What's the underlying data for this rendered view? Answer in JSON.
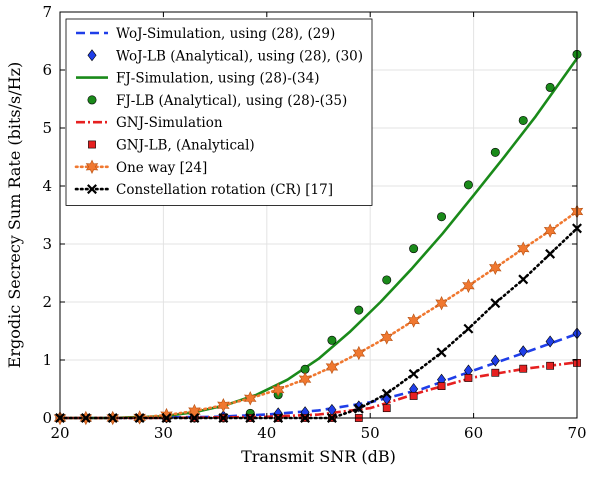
{
  "chart_data": {
    "type": "line",
    "xlabel": "Transmit SNR (dB)",
    "ylabel": "Ergodic Secrecy Sum Rate (bits/s/Hz)",
    "xlim": [
      20,
      70
    ],
    "ylim": [
      0,
      7
    ],
    "xticks": [
      "20",
      "30",
      "40",
      "50",
      "60",
      "70"
    ],
    "yticks": [
      "0",
      "1",
      "2",
      "3",
      "4",
      "5",
      "6",
      "7"
    ],
    "grid": true,
    "legend_position": "top-left",
    "series": [
      {
        "name": "WoJ-Simulation, using (28), (29)",
        "style": "dashed",
        "color": "#1f3ee8",
        "marker": "none",
        "x": [
          20,
          25,
          30,
          35,
          40,
          45,
          50,
          55,
          60,
          65,
          70
        ],
        "y": [
          0,
          0,
          0.01,
          0.02,
          0.06,
          0.13,
          0.27,
          0.5,
          0.82,
          1.13,
          1.45
        ]
      },
      {
        "name": "WoJ-LB (Analytical), using (28), (30)",
        "style": "none",
        "color": "#1f3ee8",
        "marker": "diamond",
        "x": [
          20,
          22.5,
          25.1,
          27.7,
          30.3,
          33,
          35.8,
          38.4,
          41.1,
          43.7,
          46.3,
          48.9,
          51.6,
          54.2,
          56.9,
          59.5,
          62.1,
          64.8,
          67.4,
          70
        ],
        "y": [
          0,
          0,
          0,
          0,
          0.01,
          0.02,
          0.03,
          0.05,
          0.08,
          0.1,
          0.14,
          0.2,
          0.33,
          0.5,
          0.66,
          0.82,
          0.99,
          1.15,
          1.32,
          1.46
        ]
      },
      {
        "name": "FJ-Simulation, using (28)-(34)",
        "style": "solid",
        "color": "#1a8a1a",
        "marker": "none",
        "x": [
          20,
          25,
          30,
          33,
          36,
          39,
          42,
          45,
          48,
          51,
          54,
          57,
          60,
          63,
          66,
          70
        ],
        "y": [
          0,
          0,
          0.03,
          0.1,
          0.22,
          0.4,
          0.66,
          1.02,
          1.48,
          2.0,
          2.57,
          3.18,
          3.84,
          4.51,
          5.2,
          6.2
        ]
      },
      {
        "name": "FJ-LB (Analytical), using (28)-(35)",
        "style": "none",
        "color": "#1a8a1a",
        "marker": "circle",
        "x": [
          20,
          22.5,
          25.1,
          27.7,
          30.3,
          33,
          35.8,
          38.4,
          41.1,
          43.7,
          46.3,
          48.9,
          51.6,
          54.2,
          56.9,
          59.5,
          62.1,
          64.8,
          67.4,
          70
        ],
        "y": [
          0,
          0,
          0,
          0,
          0,
          0,
          0,
          0.08,
          0.4,
          0.84,
          1.34,
          1.86,
          2.38,
          2.92,
          3.47,
          4.02,
          4.58,
          5.13,
          5.7,
          6.27
        ]
      },
      {
        "name": "GNJ-Simulation",
        "style": "dashdot",
        "color": "#e62020",
        "marker": "none",
        "x": [
          20,
          25,
          30,
          35,
          40,
          45,
          50,
          55,
          60,
          65,
          70
        ],
        "y": [
          0,
          0,
          0,
          0.01,
          0.02,
          0.06,
          0.17,
          0.45,
          0.7,
          0.85,
          0.96
        ]
      },
      {
        "name": "GNJ-LB, (Analytical)",
        "style": "none",
        "color": "#e62020",
        "marker": "square",
        "x": [
          20,
          22.5,
          25.1,
          27.7,
          30.3,
          33,
          35.8,
          38.4,
          41.1,
          43.7,
          46.3,
          48.9,
          51.6,
          54.2,
          56.9,
          59.5,
          62.1,
          64.8,
          67.4,
          70
        ],
        "y": [
          0,
          0,
          0,
          0,
          0,
          0,
          0,
          0,
          0,
          0,
          0,
          0,
          0.17,
          0.38,
          0.55,
          0.69,
          0.78,
          0.85,
          0.9,
          0.95
        ]
      },
      {
        "name": "One way [24]",
        "style": "dotted",
        "color": "#f07830",
        "marker": "hexagram",
        "x": [
          20,
          22.5,
          25.1,
          27.7,
          30.3,
          33,
          35.8,
          38.4,
          41.1,
          43.7,
          46.3,
          48.9,
          51.6,
          54.2,
          56.9,
          59.5,
          62.1,
          64.8,
          67.4,
          70
        ],
        "y": [
          0,
          0,
          0,
          0.01,
          0.05,
          0.12,
          0.22,
          0.34,
          0.49,
          0.67,
          0.88,
          1.12,
          1.39,
          1.68,
          1.98,
          2.28,
          2.59,
          2.92,
          3.23,
          3.56
        ]
      },
      {
        "name": "Constellation rotation (CR) [17]",
        "style": "dotted",
        "color": "#000000",
        "marker": "x",
        "x": [
          20,
          22.5,
          25.1,
          27.7,
          30.3,
          33,
          35.8,
          38.4,
          41.1,
          43.7,
          46.3,
          48.9,
          51.6,
          54.2,
          56.9,
          59.5,
          62.1,
          64.8,
          67.4,
          70
        ],
        "y": [
          0,
          0,
          0,
          0,
          0,
          0,
          0,
          0,
          0,
          0,
          0,
          0.16,
          0.42,
          0.76,
          1.13,
          1.54,
          1.98,
          2.39,
          2.83,
          3.27
        ]
      }
    ]
  }
}
